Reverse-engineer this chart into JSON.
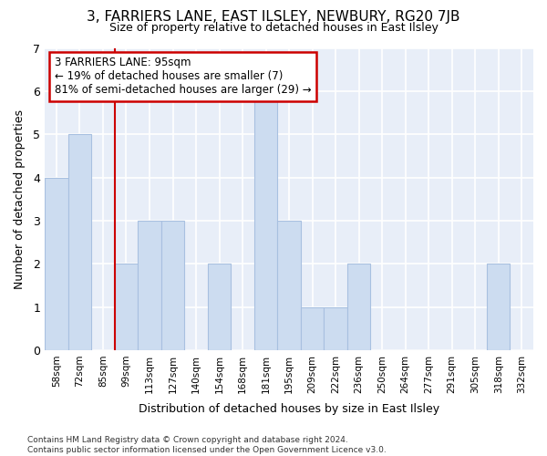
{
  "title": "3, FARRIERS LANE, EAST ILSLEY, NEWBURY, RG20 7JB",
  "subtitle": "Size of property relative to detached houses in East Ilsley",
  "xlabel": "Distribution of detached houses by size in East Ilsley",
  "ylabel": "Number of detached properties",
  "categories": [
    "58sqm",
    "72sqm",
    "85sqm",
    "99sqm",
    "113sqm",
    "127sqm",
    "140sqm",
    "154sqm",
    "168sqm",
    "181sqm",
    "195sqm",
    "209sqm",
    "222sqm",
    "236sqm",
    "250sqm",
    "264sqm",
    "277sqm",
    "291sqm",
    "305sqm",
    "318sqm",
    "332sqm"
  ],
  "values": [
    4,
    5,
    0,
    2,
    3,
    3,
    0,
    2,
    0,
    6,
    3,
    1,
    1,
    2,
    0,
    0,
    0,
    0,
    0,
    2,
    0
  ],
  "bar_color": "#ccdcf0",
  "bar_edge_color": "#a8c0e0",
  "property_line_x": 2.5,
  "property_line_color": "#cc0000",
  "annotation_line1": "3 FARRIERS LANE: 95sqm",
  "annotation_line2": "← 19% of detached houses are smaller (7)",
  "annotation_line3": "81% of semi-detached houses are larger (29) →",
  "annotation_box_edge_color": "#cc0000",
  "ylim": [
    0,
    7
  ],
  "yticks": [
    0,
    1,
    2,
    3,
    4,
    5,
    6,
    7
  ],
  "background_color": "#e8eef8",
  "grid_color": "#ffffff",
  "footer_line1": "Contains HM Land Registry data © Crown copyright and database right 2024.",
  "footer_line2": "Contains public sector information licensed under the Open Government Licence v3.0."
}
